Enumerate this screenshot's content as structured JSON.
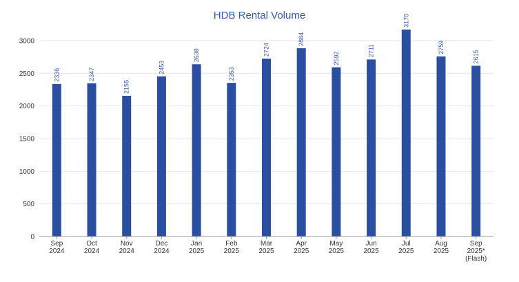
{
  "colors": {
    "bar": "#2b4fa0",
    "title": "#3558b5",
    "grid": "#e6e6e6",
    "axis": "#9a9a9a",
    "data_label": "#3558b5"
  },
  "chart_data": {
    "type": "bar",
    "title": "HDB Rental Volume",
    "xlabel": "",
    "ylabel": "",
    "ylim": [
      0,
      3200
    ],
    "yticks": [
      0,
      500,
      1000,
      1500,
      2000,
      2500,
      3000
    ],
    "grid": true,
    "legend": "none",
    "categories": [
      [
        "Sep",
        "2024"
      ],
      [
        "Oct",
        "2024"
      ],
      [
        "Nov",
        "2024"
      ],
      [
        "Dec",
        "2024"
      ],
      [
        "Jan",
        "2025"
      ],
      [
        "Feb",
        "2025"
      ],
      [
        "Mar",
        "2025"
      ],
      [
        "Apr",
        "2025"
      ],
      [
        "May",
        "2025"
      ],
      [
        "Jun",
        "2025"
      ],
      [
        "Jul",
        "2025"
      ],
      [
        "Aug",
        "2025"
      ],
      [
        "Sep",
        "2025*",
        "(Flash)"
      ]
    ],
    "values": [
      2336,
      2347,
      2155,
      2453,
      2638,
      2353,
      2724,
      2884,
      2592,
      2711,
      3170,
      2759,
      2615
    ]
  }
}
